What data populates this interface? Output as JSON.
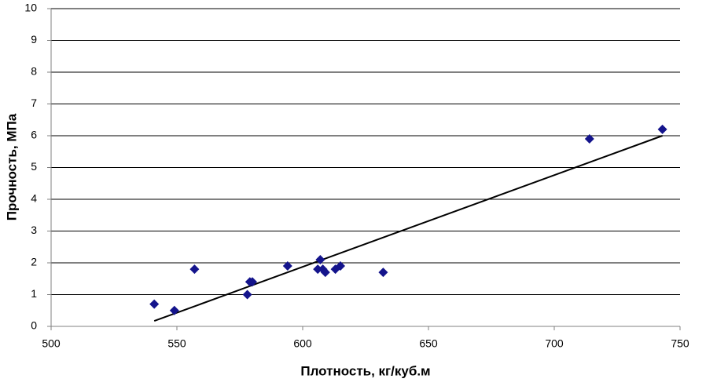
{
  "chart_data": {
    "type": "scatter",
    "x_label": "Плотность, кг/куб.м",
    "y_label": "Прочность, МПа",
    "x": [
      541,
      549,
      557,
      578,
      579,
      580,
      594,
      606,
      607,
      608,
      609,
      613,
      615,
      632,
      714,
      743
    ],
    "values": [
      0.7,
      0.5,
      1.8,
      1.0,
      1.4,
      1.4,
      1.9,
      1.8,
      2.1,
      1.8,
      1.7,
      1.8,
      1.9,
      1.7,
      5.9,
      6.2
    ],
    "color": "#14148c",
    "trendline": {
      "x": [
        541,
        743
      ],
      "y": [
        0.17,
        6.0
      ],
      "color": "#000000"
    },
    "xlim": [
      500,
      750
    ],
    "xticks": [
      500,
      550,
      600,
      650,
      700,
      750
    ],
    "ylim": [
      0,
      10
    ],
    "yticks": [
      0,
      1,
      2,
      3,
      4,
      5,
      6,
      7,
      8,
      9,
      10
    ],
    "grid": true
  }
}
